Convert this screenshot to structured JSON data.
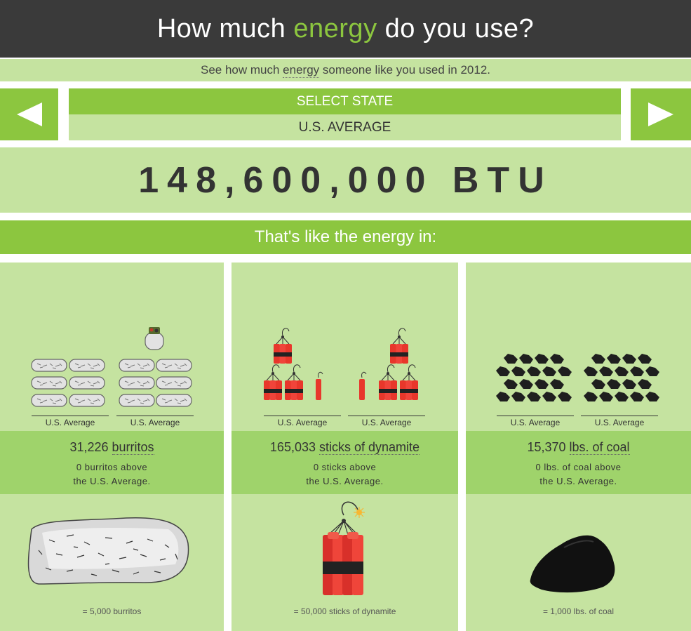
{
  "header": {
    "title_pre": "How much ",
    "title_accent": "energy",
    "title_post": " do you use?"
  },
  "subtitle": {
    "pre": "See how much ",
    "highlight": "energy",
    "post": " someone like you used in 2012."
  },
  "nav": {
    "prev_icon": "arrow-left-icon",
    "next_icon": "arrow-right-icon"
  },
  "state": {
    "select_label": "SELECT STATE",
    "current": "U.S. AVERAGE"
  },
  "total": "148,600,000 BTU",
  "like_banner": "That's like the energy in:",
  "colors": {
    "accent": "#8cc63f",
    "light": "#c5e3a0",
    "mid": "#9fd36b",
    "dark": "#3a3a3a"
  },
  "cards": [
    {
      "icon": "burrito-icon",
      "left_label": "U.S. Average",
      "right_label": "U.S. Average",
      "count": "31,226",
      "unit": "burritos",
      "diff_line1": "0 burritos above",
      "diff_line2": "the U.S. Average.",
      "equiv": "= 5,000 burritos"
    },
    {
      "icon": "dynamite-icon",
      "left_label": "U.S. Average",
      "right_label": "U.S. Average",
      "count": "165,033",
      "unit": "sticks of dynamite",
      "diff_line1": "0 sticks above",
      "diff_line2": "the U.S. Average.",
      "equiv": "= 50,000 sticks of dynamite"
    },
    {
      "icon": "coal-icon",
      "left_label": "U.S. Average",
      "right_label": "U.S. Average",
      "count": "15,370",
      "unit": "lbs. of coal",
      "diff_line1": "0 lbs. of coal above",
      "diff_line2": "the U.S. Average.",
      "equiv": "= 1,000 lbs. of coal"
    }
  ]
}
